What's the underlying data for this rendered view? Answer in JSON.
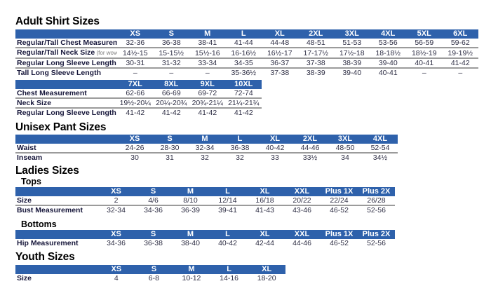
{
  "colors": {
    "header_blue": "#2e61ab",
    "header_text": "#ffffff",
    "row_divider": "#9b9b9b",
    "label_text": "#16163a",
    "value_text": "#2e2e44"
  },
  "sections": {
    "adult": {
      "title": "Adult Shirt Sizes"
    },
    "unisex": {
      "title": "Unisex Pant Sizes"
    },
    "ladies": {
      "title": "Ladies Sizes",
      "tops_label": "Tops",
      "bottoms_label": "Bottoms"
    },
    "youth": {
      "title": "Youth Sizes"
    }
  },
  "tables": {
    "adult_main": {
      "columns": [
        "XS",
        "S",
        "M",
        "L",
        "XL",
        "2XL",
        "3XL",
        "4XL",
        "5XL",
        "6XL"
      ],
      "rows": [
        {
          "label": "Regular/Tall Chest Measurement",
          "values": [
            "32-36",
            "36-38",
            "38-41",
            "41-44",
            "44-48",
            "48-51",
            "51-53",
            "53-56",
            "56-59",
            "59-62"
          ]
        },
        {
          "label": "Regular/Tall Neck Size",
          "note": "(for woven shirts)",
          "values": [
            "14½-15",
            "15-15½",
            "15½-16",
            "16-16½",
            "16½-17",
            "17-17½",
            "17½-18",
            "18-18½",
            "18½-19",
            "19-19½"
          ]
        },
        {
          "label": "Regular Long Sleeve Length",
          "values": [
            "30-31",
            "31-32",
            "33-34",
            "34-35",
            "36-37",
            "37-38",
            "38-39",
            "39-40",
            "40-41",
            "41-42"
          ]
        },
        {
          "label": "Tall Long Sleeve Length",
          "values": [
            "–",
            "–",
            "–",
            "35-36½",
            "37-38",
            "38-39",
            "39-40",
            "40-41",
            "–",
            "–"
          ]
        }
      ]
    },
    "adult_ext": {
      "columns": [
        "7XL",
        "8XL",
        "9XL",
        "10XL"
      ],
      "rows": [
        {
          "label": "Chest Measurement",
          "values": [
            "62-66",
            "66-69",
            "69-72",
            "72-74"
          ]
        },
        {
          "label": "Neck Size",
          "values": [
            "19½-20¼",
            "20¼-20¾",
            "20¾-21¼",
            "21¼-21¾"
          ]
        },
        {
          "label": "Regular Long Sleeve Length",
          "values": [
            "41-42",
            "41-42",
            "41-42",
            "41-42"
          ]
        }
      ]
    },
    "unisex": {
      "columns": [
        "XS",
        "S",
        "M",
        "L",
        "XL",
        "2XL",
        "3XL",
        "4XL"
      ],
      "rows": [
        {
          "label": "Waist",
          "values": [
            "24-26",
            "28-30",
            "32-34",
            "36-38",
            "40-42",
            "44-46",
            "48-50",
            "52-54"
          ]
        },
        {
          "label": "Inseam",
          "values": [
            "30",
            "31",
            "32",
            "32",
            "33",
            "33½",
            "34",
            "34½"
          ]
        }
      ]
    },
    "ladies_tops": {
      "columns": [
        "XS",
        "S",
        "M",
        "L",
        "XL",
        "XXL",
        "Plus 1X",
        "Plus 2X"
      ],
      "rows": [
        {
          "label": "Size",
          "values": [
            "2",
            "4/6",
            "8/10",
            "12/14",
            "16/18",
            "20/22",
            "22/24",
            "26/28"
          ]
        },
        {
          "label": "Bust Measurement",
          "values": [
            "32-34",
            "34-36",
            "36-39",
            "39-41",
            "41-43",
            "43-46",
            "46-52",
            "52-56"
          ]
        }
      ]
    },
    "ladies_bottoms": {
      "columns": [
        "XS",
        "S",
        "M",
        "L",
        "XL",
        "XXL",
        "Plus 1X",
        "Plus 2X"
      ],
      "rows": [
        {
          "label": "Hip Measurement",
          "values": [
            "34-36",
            "36-38",
            "38-40",
            "40-42",
            "42-44",
            "44-46",
            "46-52",
            "52-56"
          ]
        }
      ]
    },
    "youth": {
      "columns": [
        "XS",
        "S",
        "M",
        "L",
        "XL"
      ],
      "rows": [
        {
          "label": "Size",
          "values": [
            "4",
            "6-8",
            "10-12",
            "14-16",
            "18-20"
          ]
        }
      ]
    }
  }
}
